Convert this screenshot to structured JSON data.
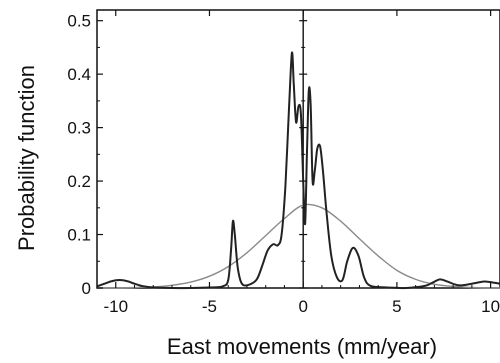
{
  "chart_data": {
    "type": "line",
    "title": "",
    "xlabel": "East movements (mm/year)",
    "ylabel": "Probability function",
    "xlim": [
      -11,
      10.5
    ],
    "ylim": [
      0,
      0.52
    ],
    "xticks": [
      -10,
      -5,
      0,
      5,
      10
    ],
    "yticks": [
      0,
      0.1,
      0.2,
      0.3,
      0.4,
      0.5
    ],
    "xtick_labels": [
      "-10",
      "-5",
      "0",
      "5",
      "10"
    ],
    "ytick_labels": [
      "0",
      "0.1",
      "0.2",
      "0.3",
      "0.4",
      "0.5"
    ],
    "grid": false,
    "legend": "none",
    "vertical_reference_line_x": 0,
    "colors": {
      "empirical": "#222222",
      "gaussian": "#8a8a8a"
    },
    "series": [
      {
        "style": "dark-line",
        "points": [
          [
            -11,
            0.003
          ],
          [
            -10.6,
            0.008
          ],
          [
            -10.2,
            0.013
          ],
          [
            -9.8,
            0.015
          ],
          [
            -9.4,
            0.013
          ],
          [
            -9.0,
            0.008
          ],
          [
            -8.5,
            0.003
          ],
          [
            -8.0,
            0.001
          ],
          [
            -7.0,
            0.0
          ],
          [
            -6.0,
            0.0
          ],
          [
            -5.0,
            0.001
          ],
          [
            -4.3,
            0.003
          ],
          [
            -4.0,
            0.015
          ],
          [
            -3.85,
            0.07
          ],
          [
            -3.75,
            0.125
          ],
          [
            -3.65,
            0.1
          ],
          [
            -3.5,
            0.04
          ],
          [
            -3.3,
            0.01
          ],
          [
            -3.0,
            0.005
          ],
          [
            -2.5,
            0.015
          ],
          [
            -2.2,
            0.04
          ],
          [
            -1.9,
            0.07
          ],
          [
            -1.6,
            0.082
          ],
          [
            -1.35,
            0.08
          ],
          [
            -1.15,
            0.1
          ],
          [
            -0.95,
            0.19
          ],
          [
            -0.75,
            0.34
          ],
          [
            -0.6,
            0.44
          ],
          [
            -0.5,
            0.38
          ],
          [
            -0.38,
            0.31
          ],
          [
            -0.25,
            0.34
          ],
          [
            -0.12,
            0.325
          ],
          [
            0.0,
            0.2
          ],
          [
            0.1,
            0.12
          ],
          [
            0.2,
            0.25
          ],
          [
            0.3,
            0.37
          ],
          [
            0.4,
            0.34
          ],
          [
            0.5,
            0.2
          ],
          [
            0.62,
            0.22
          ],
          [
            0.75,
            0.26
          ],
          [
            0.9,
            0.265
          ],
          [
            1.05,
            0.22
          ],
          [
            1.25,
            0.14
          ],
          [
            1.5,
            0.06
          ],
          [
            1.8,
            0.02
          ],
          [
            2.1,
            0.015
          ],
          [
            2.35,
            0.05
          ],
          [
            2.65,
            0.075
          ],
          [
            2.95,
            0.06
          ],
          [
            3.25,
            0.02
          ],
          [
            3.6,
            0.004
          ],
          [
            4.5,
            0.001
          ],
          [
            5.5,
            0.0
          ],
          [
            6.5,
            0.004
          ],
          [
            6.9,
            0.01
          ],
          [
            7.3,
            0.016
          ],
          [
            7.7,
            0.012
          ],
          [
            8.3,
            0.005
          ],
          [
            9.0,
            0.008
          ],
          [
            9.6,
            0.012
          ],
          [
            10.0,
            0.011
          ],
          [
            10.5,
            0.008
          ]
        ]
      },
      {
        "style": "gray-gaussian",
        "points": [
          [
            -11,
            0.0
          ],
          [
            -10,
            0.0
          ],
          [
            -9,
            0.001
          ],
          [
            -8,
            0.002
          ],
          [
            -7,
            0.005
          ],
          [
            -6,
            0.011
          ],
          [
            -5,
            0.022
          ],
          [
            -4,
            0.04
          ],
          [
            -3,
            0.066
          ],
          [
            -2,
            0.098
          ],
          [
            -1,
            0.13
          ],
          [
            0,
            0.155
          ],
          [
            1,
            0.15
          ],
          [
            2,
            0.125
          ],
          [
            3,
            0.092
          ],
          [
            4,
            0.06
          ],
          [
            5,
            0.033
          ],
          [
            6,
            0.016
          ],
          [
            7,
            0.007
          ],
          [
            8,
            0.003
          ],
          [
            9,
            0.001
          ],
          [
            10,
            0.0
          ],
          [
            10.5,
            0.0
          ]
        ]
      }
    ]
  }
}
